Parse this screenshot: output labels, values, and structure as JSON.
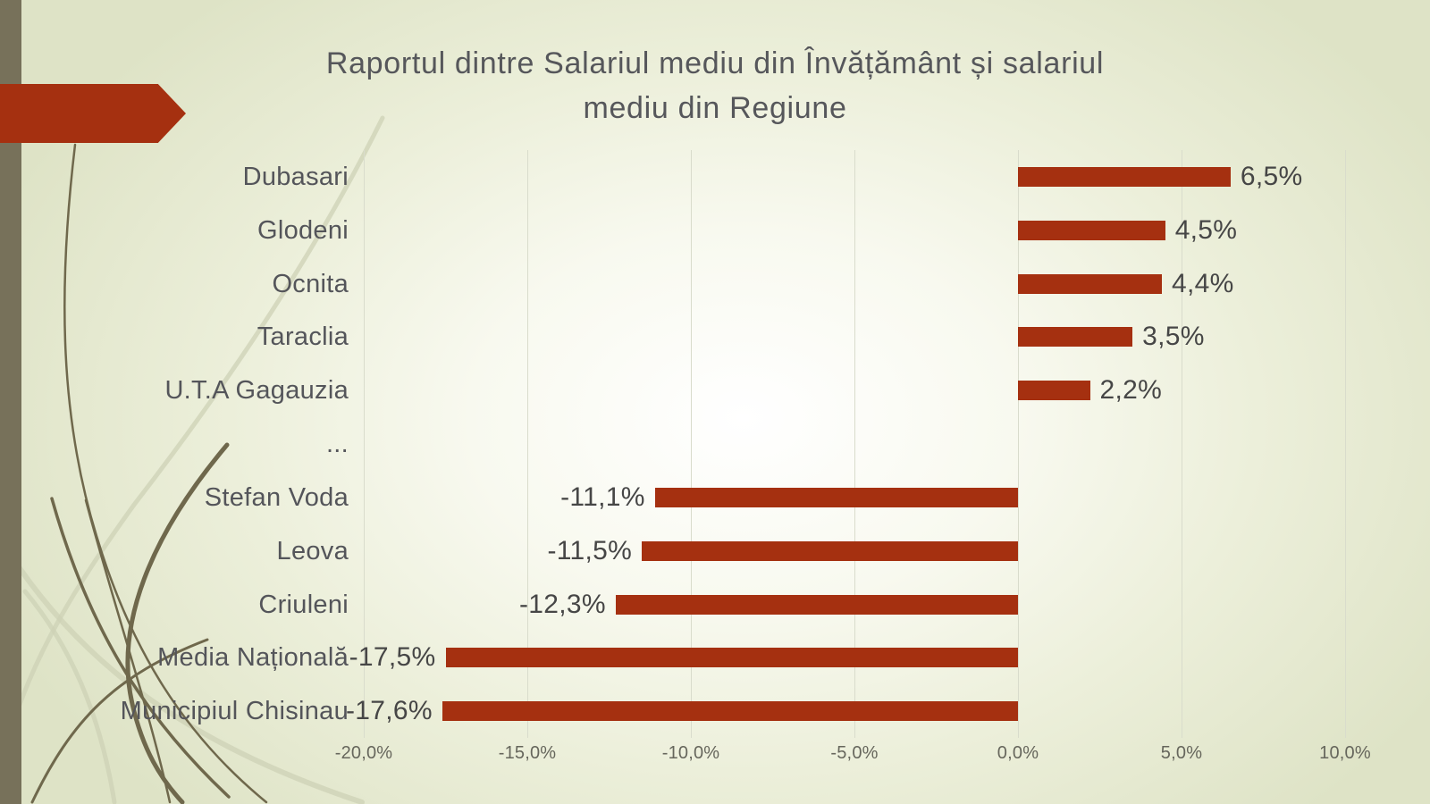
{
  "slide": {
    "title_line1": "Raportul dintre Salariul mediu din Învățământ și salariul",
    "title_line2": "mediu din Regiune"
  },
  "chart_data": {
    "type": "bar",
    "orientation": "horizontal",
    "title": "Raportul dintre Salariul mediu din Învățământ și salariul mediu din Regiune",
    "categories": [
      "Dubasari",
      "Glodeni",
      "Ocnita",
      "Taraclia",
      "U.T.A Gagauzia",
      "...",
      "Stefan Voda",
      "Leova",
      "Criuleni",
      "Media Națională",
      "Municipiul Chisinau"
    ],
    "values": [
      6.5,
      4.5,
      4.4,
      3.5,
      2.2,
      null,
      -11.1,
      -11.5,
      -12.3,
      -17.5,
      -17.6
    ],
    "value_labels": [
      "6,5%",
      "4,5%",
      "4,4%",
      "3,5%",
      "2,2%",
      null,
      "-11,1%",
      "-11,5%",
      "-12,3%",
      "-17,5%",
      "-17,6%"
    ],
    "x_tick_labels": [
      "-20,0%",
      "-15,0%",
      "-10,0%",
      "-5,0%",
      "0,0%",
      "5,0%",
      "10,0%"
    ],
    "x_tick_values": [
      -20,
      -15,
      -10,
      -5,
      0,
      5,
      10
    ],
    "xlim": [
      -20,
      10
    ],
    "grid": true,
    "legend": false,
    "bar_color": "#A53010",
    "gridline_color": "#D9DCCC",
    "value_label_color": "#464646",
    "category_label_color": "#54555A",
    "axis_label_color": "#66665C"
  },
  "decor": {
    "accent_red": "#A53010",
    "side_strip_color": "#77715A",
    "wisp_dark": "#6F684C",
    "wisp_light": "#CDD2B6"
  }
}
